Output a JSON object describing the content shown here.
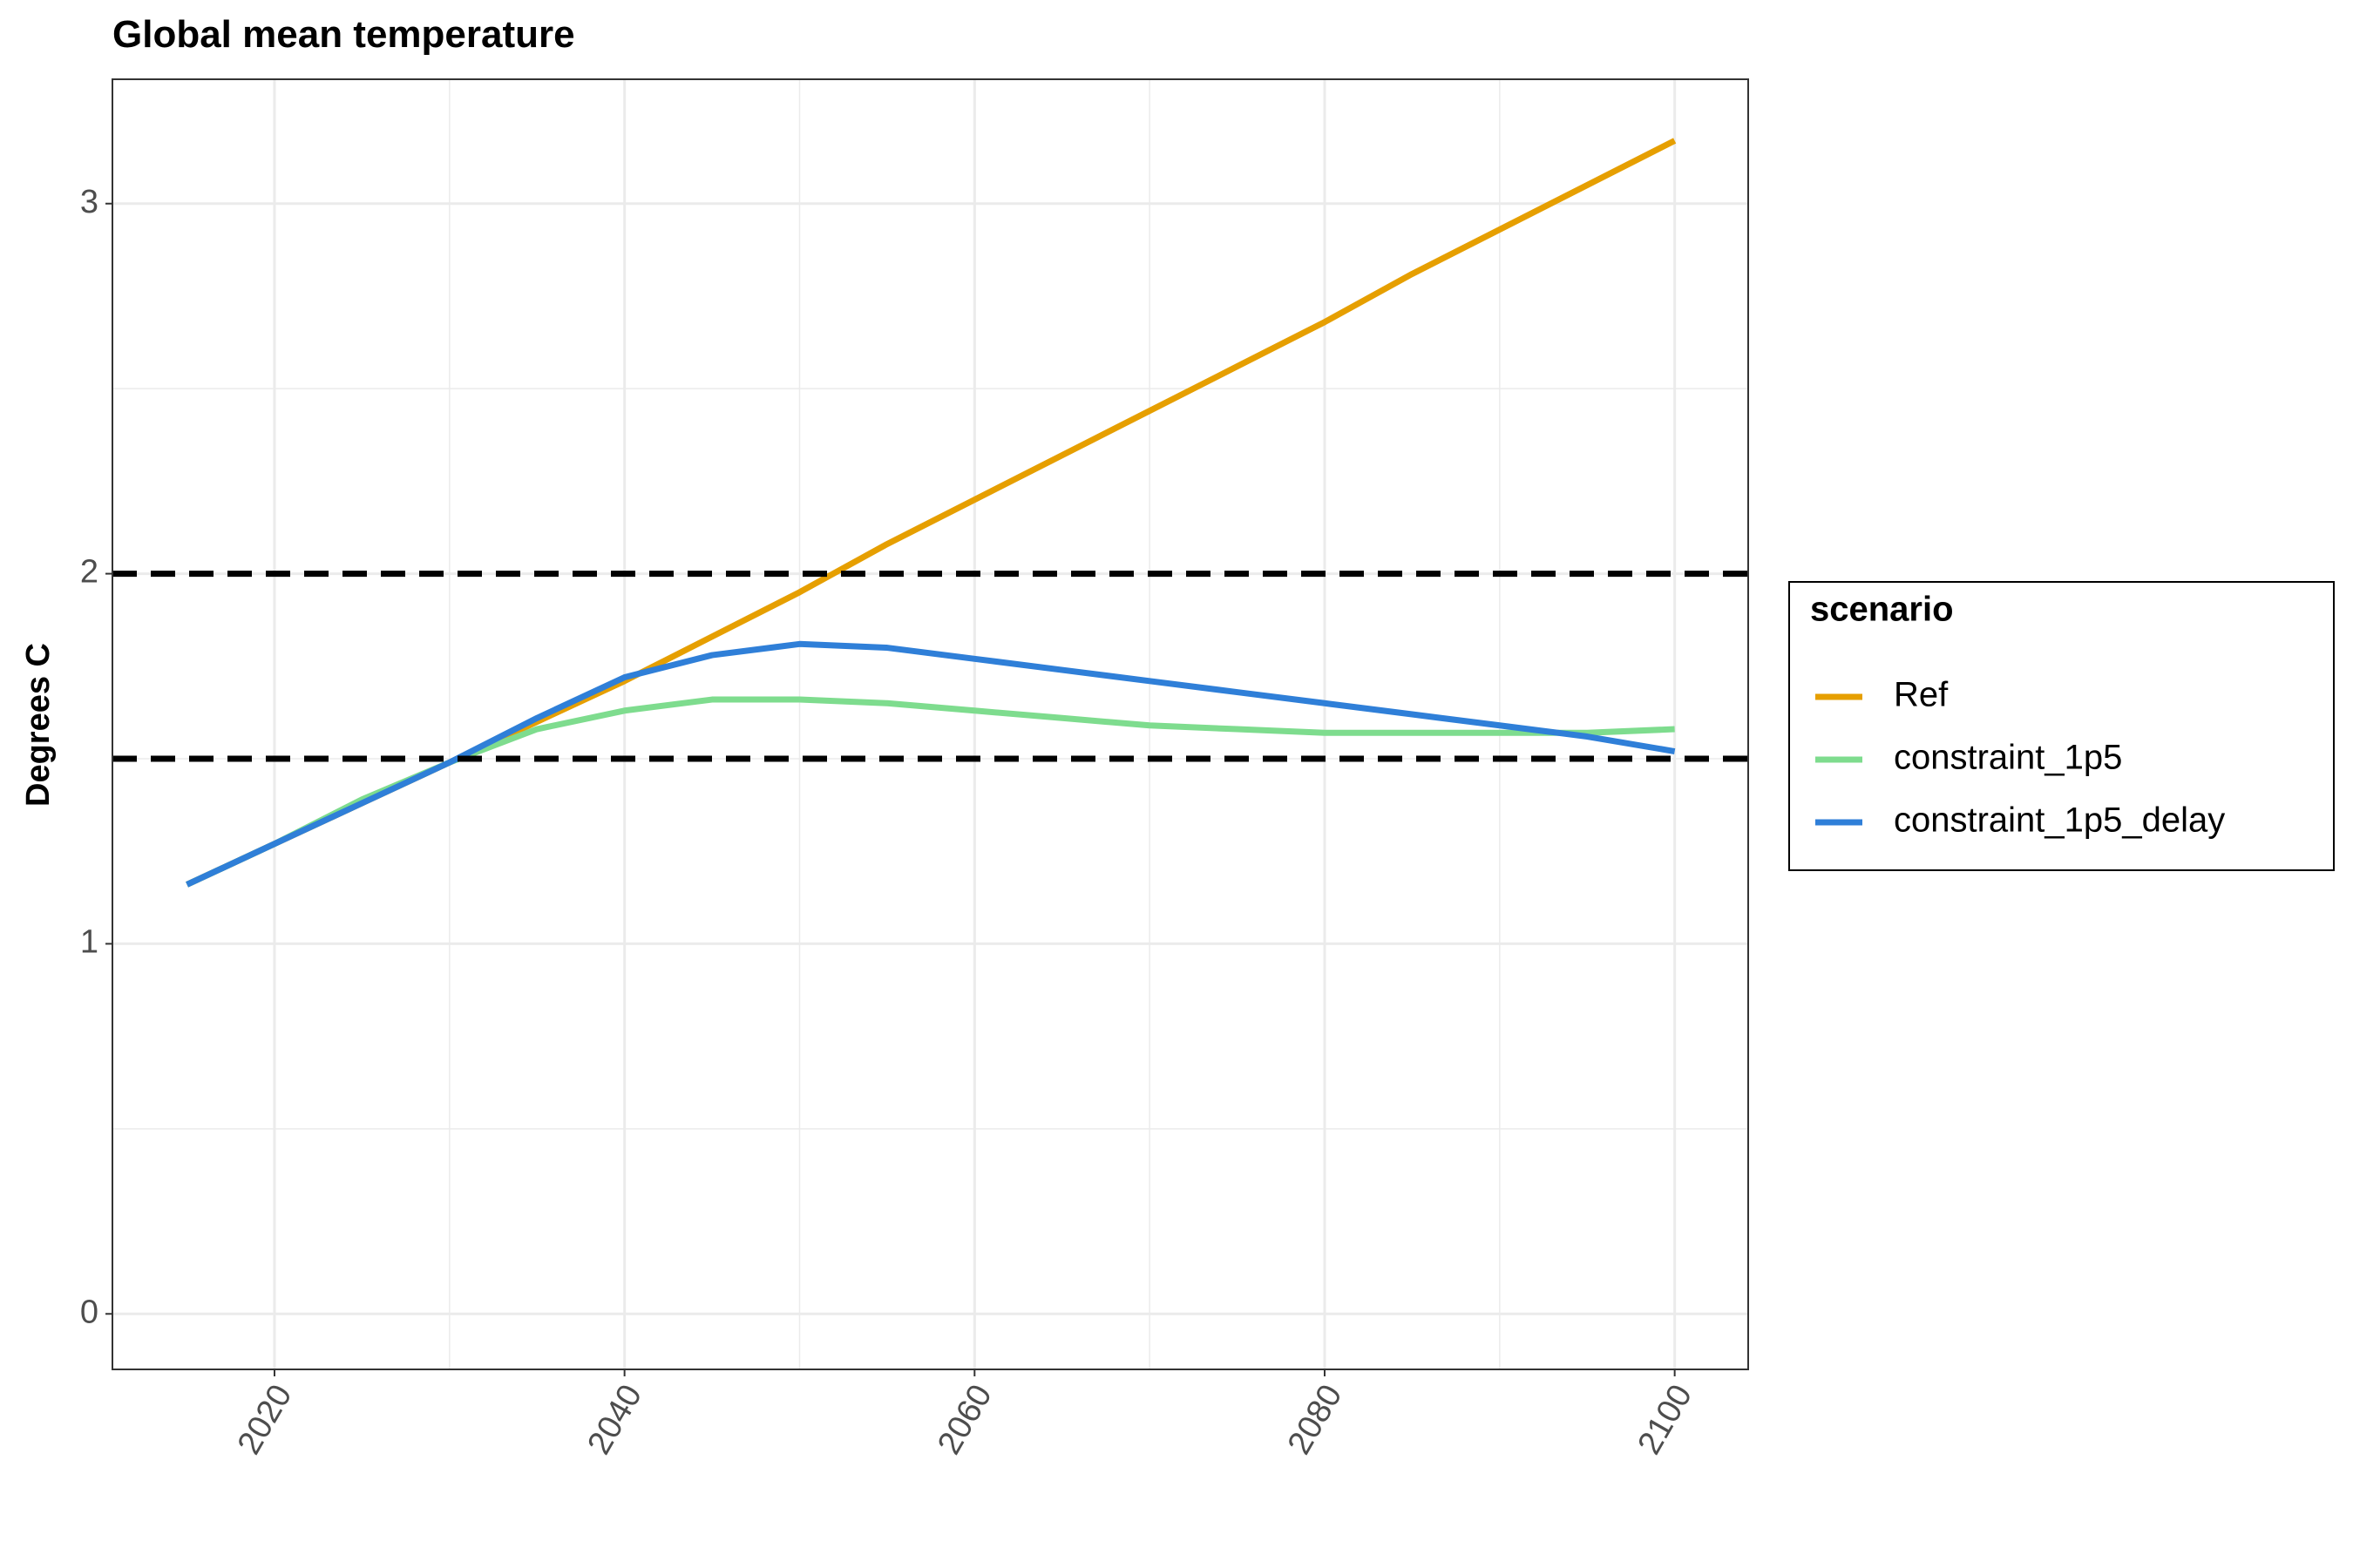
{
  "chart_data": {
    "type": "line",
    "title": "Global mean temperature",
    "y_label": "Degrees C",
    "x": [
      2015,
      2020,
      2025,
      2030,
      2035,
      2040,
      2045,
      2050,
      2055,
      2060,
      2065,
      2070,
      2075,
      2080,
      2085,
      2090,
      2095,
      2100
    ],
    "series": [
      {
        "name": "Ref",
        "color": "#E69F00",
        "values": [
          1.16,
          1.27,
          1.38,
          1.49,
          1.6,
          1.71,
          1.83,
          1.95,
          2.08,
          2.2,
          2.32,
          2.44,
          2.56,
          2.68,
          2.81,
          2.93,
          3.05,
          3.17
        ]
      },
      {
        "name": "constraint_1p5",
        "color": "#7EDC8E",
        "values": [
          1.16,
          1.27,
          1.39,
          1.49,
          1.58,
          1.63,
          1.66,
          1.66,
          1.65,
          1.63,
          1.61,
          1.59,
          1.58,
          1.57,
          1.57,
          1.57,
          1.57,
          1.58
        ]
      },
      {
        "name": "constraint_1p5_delay",
        "color": "#2F7FD8",
        "values": [
          1.16,
          1.27,
          1.38,
          1.49,
          1.61,
          1.72,
          1.78,
          1.81,
          1.8,
          1.77,
          1.74,
          1.71,
          1.68,
          1.65,
          1.62,
          1.59,
          1.56,
          1.52
        ]
      }
    ],
    "hlines": [
      2,
      1.5
    ],
    "legend_title": "scenario",
    "legend": "right",
    "xlim": [
      2010.74,
      2104.2
    ],
    "xticks": [
      2020,
      2040,
      2060,
      2080,
      2100
    ],
    "ylim": [
      -0.15,
      3.336
    ],
    "yticks": [
      0,
      1,
      2,
      3
    ],
    "grid": true
  }
}
